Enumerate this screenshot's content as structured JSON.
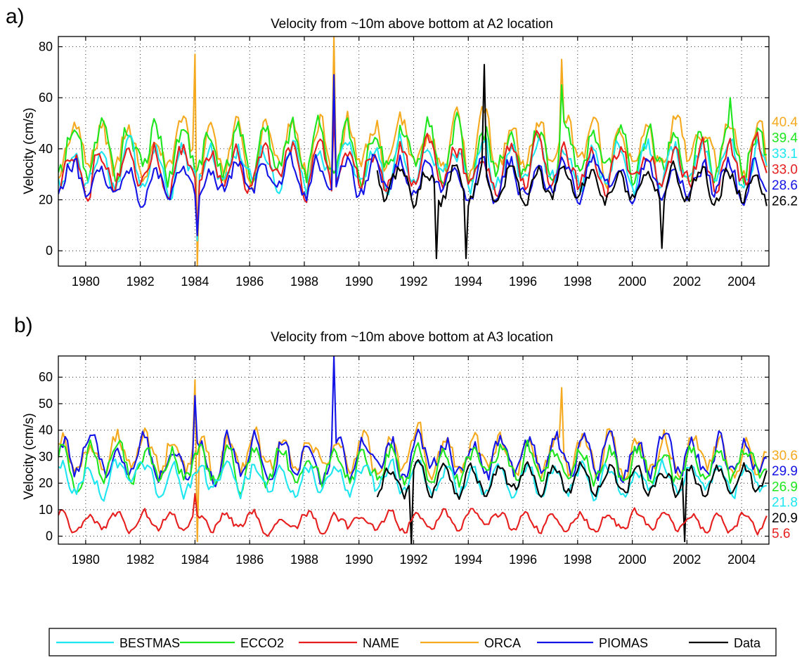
{
  "chart_data": [
    {
      "type": "line",
      "panel_label": "a)",
      "title": "Velocity from ~10m above bottom at A2 location",
      "ylabel": "Velocity (cm/s)",
      "xlim": [
        1979,
        2005
      ],
      "ylim": [
        -6,
        84
      ],
      "x_ticks": [
        1980,
        1982,
        1984,
        1986,
        1988,
        1990,
        1992,
        1994,
        1996,
        1998,
        2000,
        2002,
        2004
      ],
      "y_ticks": [
        0,
        20,
        40,
        60,
        80
      ],
      "grid": true,
      "series": [
        {
          "name": "ORCA",
          "color": "#f5a91e",
          "x_range": [
            1979.0,
            2004.9
          ],
          "mean": 40.4,
          "spikes": [
            [
              1984.0,
              77
            ],
            [
              1984.08,
              -6
            ],
            [
              1989.05,
              84
            ],
            [
              1997.4,
              75
            ]
          ]
        },
        {
          "name": "ECCO2",
          "color": "#1ee61e",
          "x_range": [
            1979.0,
            2004.9
          ],
          "mean": 39.4,
          "spikes": [
            [
              1997.45,
              65
            ],
            [
              2003.6,
              60
            ]
          ]
        },
        {
          "name": "BESTMAS",
          "color": "#1ee6f0",
          "x_range": [
            1979.0,
            2004.9
          ],
          "mean": 33.1,
          "spikes": [
            [
              1984.05,
              4
            ],
            [
              1989.05,
              66
            ]
          ]
        },
        {
          "name": "NAME",
          "color": "#e61e1e",
          "x_range": [
            1979.0,
            2004.9
          ],
          "mean": 33.0,
          "spikes": [
            [
              1984.05,
              6
            ],
            [
              1989.05,
              55
            ]
          ]
        },
        {
          "name": "PIOMAS",
          "color": "#1414e6",
          "x_range": [
            1979.0,
            2004.9
          ],
          "mean": 28.6,
          "spikes": [
            [
              1984.05,
              6
            ],
            [
              1989.05,
              69
            ]
          ]
        },
        {
          "name": "Data",
          "color": "#000000",
          "x_range": [
            1990.7,
            2004.9
          ],
          "mean": 26.2,
          "spikes": [
            [
              1992.8,
              -3
            ],
            [
              1993.9,
              -3
            ],
            [
              1994.6,
              73
            ],
            [
              2001.1,
              1
            ]
          ]
        }
      ]
    },
    {
      "type": "line",
      "panel_label": "b)",
      "title": "Velocity from ~10m above bottom at A3 location",
      "ylabel": "Velocity (cm/s)",
      "xlim": [
        1979,
        2005
      ],
      "ylim": [
        -3,
        68
      ],
      "x_ticks": [
        1980,
        1982,
        1984,
        1986,
        1988,
        1990,
        1992,
        1994,
        1996,
        1998,
        2000,
        2002,
        2004
      ],
      "y_ticks": [
        0,
        10,
        20,
        30,
        40,
        50,
        60
      ],
      "grid": true,
      "series": [
        {
          "name": "ORCA",
          "color": "#f5a91e",
          "x_range": [
            1979.0,
            2004.9
          ],
          "mean": 30.6,
          "spikes": [
            [
              1984.0,
              59
            ],
            [
              1984.08,
              -2
            ],
            [
              1997.4,
              56
            ]
          ]
        },
        {
          "name": "PIOMAS",
          "color": "#1414e6",
          "x_range": [
            1979.0,
            2004.9
          ],
          "mean": 29.9,
          "spikes": [
            [
              1984.0,
              53
            ],
            [
              1989.05,
              68
            ]
          ]
        },
        {
          "name": "ECCO2",
          "color": "#1ee61e",
          "x_range": [
            1979.0,
            2004.9
          ],
          "mean": 26.9,
          "spikes": []
        },
        {
          "name": "BESTMAS",
          "color": "#1ee6f0",
          "x_range": [
            1979.0,
            2004.9
          ],
          "mean": 21.8,
          "spikes": []
        },
        {
          "name": "Data",
          "color": "#000000",
          "x_range": [
            1990.7,
            2004.9
          ],
          "mean": 20.9,
          "spikes": [
            [
              1991.9,
              -3
            ],
            [
              2001.9,
              -2
            ]
          ]
        },
        {
          "name": "NAME",
          "color": "#e61e1e",
          "x_range": [
            1979.0,
            2004.9
          ],
          "mean": 5.6,
          "spikes": [
            [
              1984.0,
              16
            ]
          ]
        }
      ]
    }
  ],
  "legend": {
    "position": "bottom",
    "entries": [
      {
        "label": "BESTMAS",
        "color": "#1ee6f0"
      },
      {
        "label": "ECCO2",
        "color": "#1ee61e"
      },
      {
        "label": "NAME",
        "color": "#e61e1e"
      },
      {
        "label": "ORCA",
        "color": "#f5a91e"
      },
      {
        "label": "PIOMAS",
        "color": "#1414e6"
      },
      {
        "label": "Data",
        "color": "#000000"
      }
    ]
  }
}
